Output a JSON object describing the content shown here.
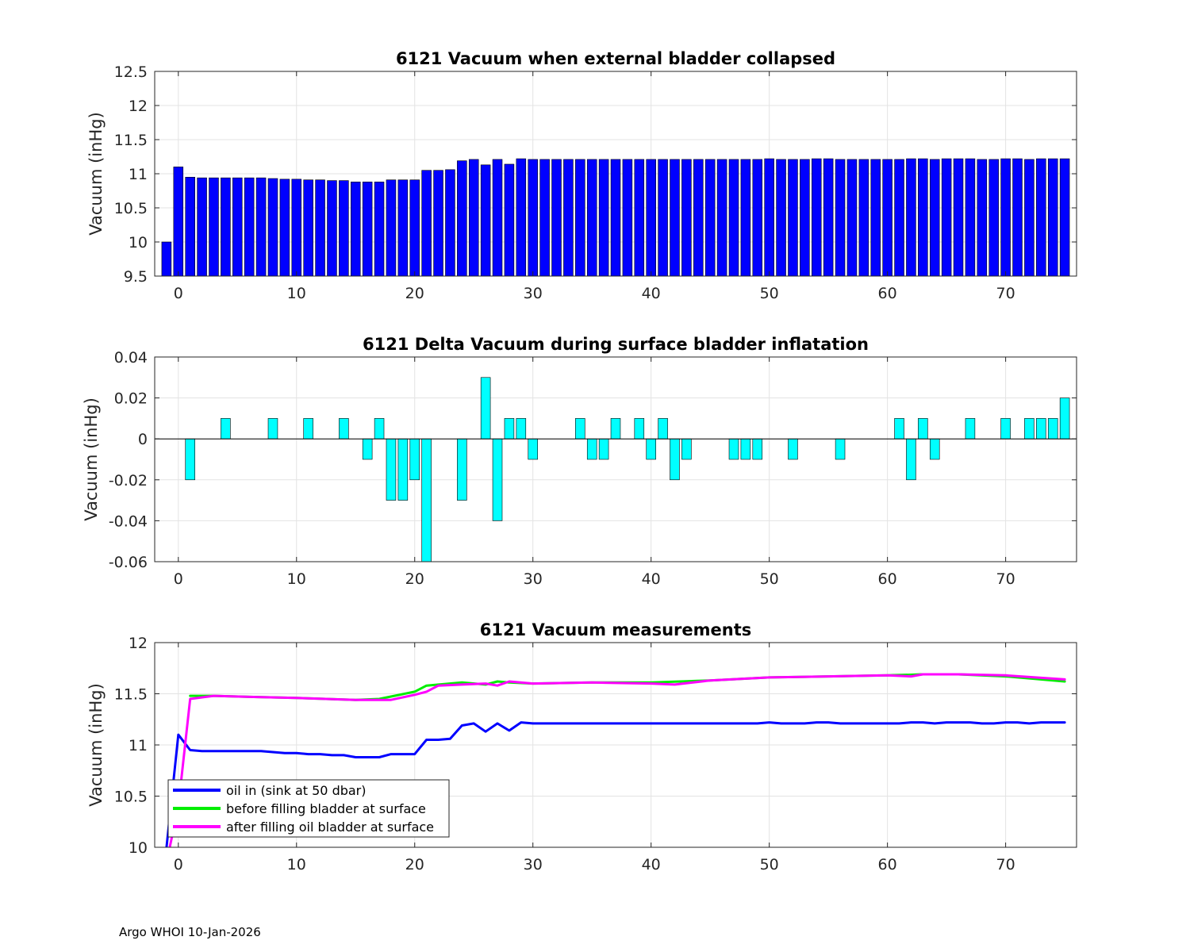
{
  "footer": "Argo WHOI 10-Jan-2026",
  "chart_data": [
    {
      "type": "bar",
      "title": "6121 Vacuum when external bladder collapsed",
      "xlabel": "",
      "ylabel": "Vacuum (inHg)",
      "xlim": [
        -2,
        76
      ],
      "ylim": [
        9.5,
        12.5
      ],
      "xticks": [
        0,
        10,
        20,
        30,
        40,
        50,
        60,
        70
      ],
      "yticks": [
        9.5,
        10,
        10.5,
        11,
        11.5,
        12,
        12.5
      ],
      "ytick_labels": [
        "9.5",
        "10",
        "10.5",
        "11",
        "11.5",
        "12",
        "12.5"
      ],
      "grid": true,
      "color": "#0000ff",
      "x": [
        -1,
        0,
        1,
        2,
        3,
        4,
        5,
        6,
        7,
        8,
        9,
        10,
        11,
        12,
        13,
        14,
        15,
        16,
        17,
        18,
        19,
        20,
        21,
        22,
        23,
        24,
        25,
        26,
        27,
        28,
        29,
        30,
        31,
        32,
        33,
        34,
        35,
        36,
        37,
        38,
        39,
        40,
        41,
        42,
        43,
        44,
        45,
        46,
        47,
        48,
        49,
        50,
        51,
        52,
        53,
        54,
        55,
        56,
        57,
        58,
        59,
        60,
        61,
        62,
        63,
        64,
        65,
        66,
        67,
        68,
        69,
        70,
        71,
        72,
        73,
        74,
        75
      ],
      "values": [
        10.0,
        11.1,
        10.95,
        10.94,
        10.94,
        10.94,
        10.94,
        10.94,
        10.94,
        10.93,
        10.92,
        10.92,
        10.91,
        10.91,
        10.9,
        10.9,
        10.88,
        10.88,
        10.88,
        10.91,
        10.91,
        10.91,
        11.05,
        11.05,
        11.06,
        11.19,
        11.21,
        11.13,
        11.21,
        11.14,
        11.22,
        11.21,
        11.21,
        11.21,
        11.21,
        11.21,
        11.21,
        11.21,
        11.21,
        11.21,
        11.21,
        11.21,
        11.21,
        11.21,
        11.21,
        11.21,
        11.21,
        11.21,
        11.21,
        11.21,
        11.21,
        11.22,
        11.21,
        11.21,
        11.21,
        11.22,
        11.22,
        11.21,
        11.21,
        11.21,
        11.21,
        11.21,
        11.21,
        11.22,
        11.22,
        11.21,
        11.22,
        11.22,
        11.22,
        11.21,
        11.21,
        11.22,
        11.22,
        11.21,
        11.22,
        11.22,
        11.22
      ]
    },
    {
      "type": "bar",
      "title": "6121 Delta Vacuum during surface bladder inflatation",
      "xlabel": "",
      "ylabel": "Vacuum (inHg)",
      "xlim": [
        -2,
        76
      ],
      "ylim": [
        -0.06,
        0.04
      ],
      "xticks": [
        0,
        10,
        20,
        30,
        40,
        50,
        60,
        70
      ],
      "yticks": [
        -0.06,
        -0.04,
        -0.02,
        0,
        0.02,
        0.04
      ],
      "ytick_labels": [
        "-0.06",
        "-0.04",
        "-0.02",
        "0",
        "0.02",
        "0.04"
      ],
      "grid": true,
      "color": "#00ffff",
      "x": [
        0,
        1,
        2,
        3,
        4,
        5,
        6,
        7,
        8,
        9,
        10,
        11,
        12,
        13,
        14,
        15,
        16,
        17,
        18,
        19,
        20,
        21,
        22,
        23,
        24,
        25,
        26,
        27,
        28,
        29,
        30,
        31,
        32,
        33,
        34,
        35,
        36,
        37,
        38,
        39,
        40,
        41,
        42,
        43,
        44,
        45,
        46,
        47,
        48,
        49,
        50,
        51,
        52,
        53,
        54,
        55,
        56,
        57,
        58,
        59,
        60,
        61,
        62,
        63,
        64,
        65,
        66,
        67,
        68,
        69,
        70,
        71,
        72,
        73,
        74,
        75
      ],
      "values": [
        0,
        -0.02,
        0,
        0,
        0.01,
        0,
        0,
        0,
        0.01,
        0,
        0,
        0.01,
        0,
        0,
        0.01,
        0,
        -0.01,
        0.01,
        -0.03,
        -0.03,
        -0.02,
        -0.06,
        0,
        0,
        -0.03,
        0,
        0.03,
        -0.04,
        0.01,
        0.01,
        -0.01,
        0,
        0,
        0,
        0.01,
        -0.01,
        -0.01,
        0.01,
        0,
        0.01,
        -0.01,
        0.01,
        -0.02,
        -0.01,
        0,
        0,
        0,
        -0.01,
        -0.01,
        -0.01,
        0,
        0,
        -0.01,
        0,
        0,
        0,
        -0.01,
        0,
        0,
        0,
        0,
        0.01,
        -0.02,
        0.01,
        -0.01,
        0,
        0,
        0.01,
        0,
        0,
        0.01,
        0,
        0.01,
        0.01,
        0.01,
        0.02
      ]
    },
    {
      "type": "line",
      "title": "6121 Vacuum measurements",
      "xlabel": "",
      "ylabel": "Vacuum (inHg)",
      "xlim": [
        -2,
        76
      ],
      "ylim": [
        10,
        12
      ],
      "xticks": [
        0,
        10,
        20,
        30,
        40,
        50,
        60,
        70
      ],
      "yticks": [
        10,
        10.5,
        11,
        11.5,
        12
      ],
      "ytick_labels": [
        "10",
        "10.5",
        "11",
        "11.5",
        "12"
      ],
      "grid": true,
      "legend": "bottom-left",
      "series": [
        {
          "name": "oil in (sink at 50 dbar)",
          "color": "#0000ff",
          "x": [
            -1,
            0,
            1,
            2,
            3,
            4,
            5,
            6,
            7,
            8,
            9,
            10,
            11,
            12,
            13,
            14,
            15,
            16,
            17,
            18,
            19,
            20,
            21,
            22,
            23,
            24,
            25,
            26,
            27,
            28,
            29,
            30,
            31,
            32,
            33,
            34,
            35,
            36,
            37,
            38,
            39,
            40,
            41,
            42,
            43,
            44,
            45,
            46,
            47,
            48,
            49,
            50,
            51,
            52,
            53,
            54,
            55,
            56,
            57,
            58,
            59,
            60,
            61,
            62,
            63,
            64,
            65,
            66,
            67,
            68,
            69,
            70,
            71,
            72,
            73,
            74,
            75
          ],
          "values": [
            10.0,
            11.1,
            10.95,
            10.94,
            10.94,
            10.94,
            10.94,
            10.94,
            10.94,
            10.93,
            10.92,
            10.92,
            10.91,
            10.91,
            10.9,
            10.9,
            10.88,
            10.88,
            10.88,
            10.91,
            10.91,
            10.91,
            11.05,
            11.05,
            11.06,
            11.19,
            11.21,
            11.13,
            11.21,
            11.14,
            11.22,
            11.21,
            11.21,
            11.21,
            11.21,
            11.21,
            11.21,
            11.21,
            11.21,
            11.21,
            11.21,
            11.21,
            11.21,
            11.21,
            11.21,
            11.21,
            11.21,
            11.21,
            11.21,
            11.21,
            11.21,
            11.22,
            11.21,
            11.21,
            11.21,
            11.22,
            11.22,
            11.21,
            11.21,
            11.21,
            11.21,
            11.21,
            11.21,
            11.22,
            11.22,
            11.21,
            11.22,
            11.22,
            11.22,
            11.21,
            11.21,
            11.22,
            11.22,
            11.21,
            11.22,
            11.22,
            11.22
          ]
        },
        {
          "name": "before filling bladder at surface",
          "color": "#00ee00",
          "x": [
            1,
            3,
            6,
            10,
            15,
            17,
            20,
            21,
            24,
            26,
            27,
            28,
            30,
            35,
            40,
            45,
            50,
            55,
            60,
            63,
            66,
            70,
            75
          ],
          "values": [
            11.48,
            11.48,
            11.47,
            11.46,
            11.44,
            11.45,
            11.52,
            11.58,
            11.61,
            11.59,
            11.62,
            11.61,
            11.6,
            11.61,
            11.61,
            11.63,
            11.66,
            11.67,
            11.68,
            11.69,
            11.69,
            11.67,
            11.62
          ]
        },
        {
          "name": "after filling oil bladder at surface",
          "color": "#ff00ff",
          "x": [
            -1,
            0,
            1,
            3,
            6,
            10,
            15,
            17,
            18,
            20,
            21,
            22,
            24,
            26,
            27,
            28,
            30,
            35,
            40,
            42,
            45,
            50,
            55,
            60,
            62,
            63,
            66,
            70,
            75
          ],
          "values": [
            9.85,
            10.4,
            11.45,
            11.48,
            11.47,
            11.46,
            11.44,
            11.44,
            11.44,
            11.49,
            11.52,
            11.58,
            11.59,
            11.6,
            11.58,
            11.62,
            11.6,
            11.61,
            11.6,
            11.59,
            11.63,
            11.66,
            11.67,
            11.68,
            11.67,
            11.69,
            11.69,
            11.68,
            11.64
          ]
        }
      ]
    }
  ]
}
